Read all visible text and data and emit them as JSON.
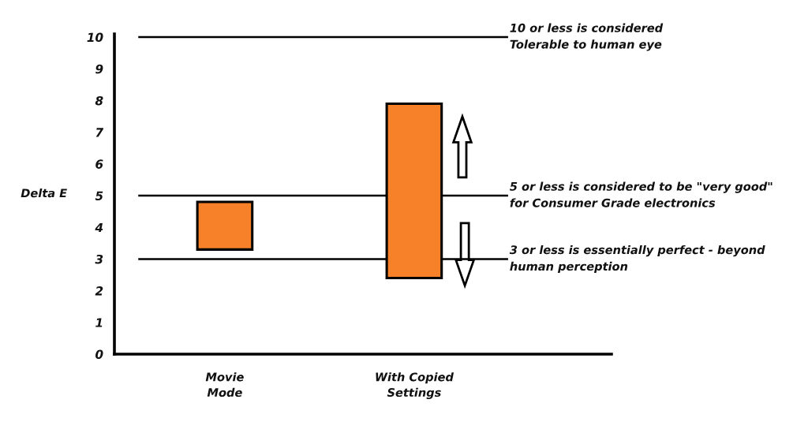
{
  "chart_data": {
    "type": "bar",
    "categories": [
      "Movie\nMode",
      "With Copied\nSettings"
    ],
    "base": [
      3.3,
      2.4
    ],
    "values": [
      1.5,
      5.5
    ],
    "color": "#f68128",
    "ylabel": "Delta E",
    "ylim": [
      0,
      10.1
    ],
    "yticks": [
      0,
      1,
      2,
      3,
      4,
      5,
      6,
      7,
      8,
      9,
      10
    ],
    "ref_lines": [
      {
        "axis": "y",
        "value": 10,
        "label": "10 or less is considered\nTolerable to human eye",
        "color": "#000000"
      },
      {
        "axis": "y",
        "value": 5,
        "label": "5 or less is considered to be \"very good\"\nfor Consumer Grade electronics",
        "color": "#000000"
      },
      {
        "axis": "y",
        "value": 3,
        "label": "3 or less is essentially perfect - beyond\nhuman perception",
        "color": "#000000"
      }
    ]
  }
}
